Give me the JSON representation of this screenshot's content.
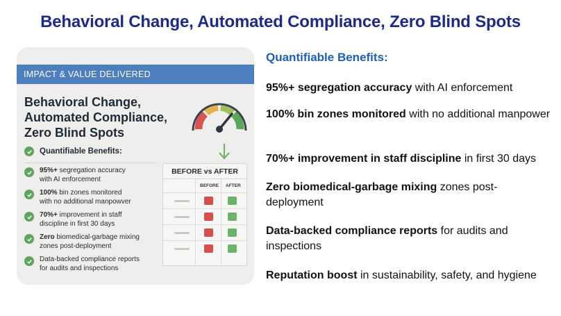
{
  "page": {
    "title": "Behavioral Change, Automated Compliance, Zero Blind Spots"
  },
  "card": {
    "banner": "IMPACT & VALUE DELIVERED",
    "heading_lines": [
      "Behavioral Change,",
      "Automated Compliance,",
      "Zero Blind Spots"
    ],
    "quantifiable_label": "Quantifiable Benefits:",
    "items": [
      {
        "bold": "95%+",
        "line1_rest": " segregation accuracy",
        "line2": "with AI enforcement"
      },
      {
        "bold": "100%",
        "line1_rest": " bin zones monitored",
        "line2": "with no additional manpowver"
      },
      {
        "bold": "70%+",
        "line1_rest": " improvement in staff",
        "line2": "discipline in first 30 days"
      },
      {
        "bold": "Zero",
        "line1_rest": " biomedical-garbage mixing",
        "line2": "zones post-deployment"
      },
      {
        "bold": "",
        "line1_rest": "Data-backed compliance reports",
        "line2": "for audits and inspections"
      }
    ],
    "before_after": {
      "title": "BEFORE vs AFTER",
      "col_before": "BEFORE",
      "col_after": "AFTER"
    },
    "colors": {
      "banner": "#4d7fbe",
      "check": "#5ea45a",
      "before_red": "#d4504b",
      "after_green": "#6fb36a"
    },
    "icons": [
      "speedometer-gauge-icon",
      "down-arrow-icon",
      "check-circle-icon"
    ]
  },
  "benefits": {
    "heading": "Quantifiable Benefits:",
    "items": [
      {
        "bold": "95%+ segregation accuracy",
        "rest": " with AI enforcement"
      },
      {
        "bold": "100% bin zones monitored",
        "rest": " with no additional manpower"
      },
      {
        "bold": "70%+ improvement in staff discipline",
        "rest": " in first 30 days"
      },
      {
        "bold": "Zero biomedical-garbage mixing",
        "rest": " zones post-deployment"
      },
      {
        "bold": "Data-backed compliance reports",
        "rest": " for audits and inspections"
      },
      {
        "bold": "Reputation boost",
        "rest": " in sustainability, safety, and hygiene"
      }
    ]
  },
  "colors": {
    "title": "#1c2a8a",
    "subheading": "#1d5fb5"
  }
}
